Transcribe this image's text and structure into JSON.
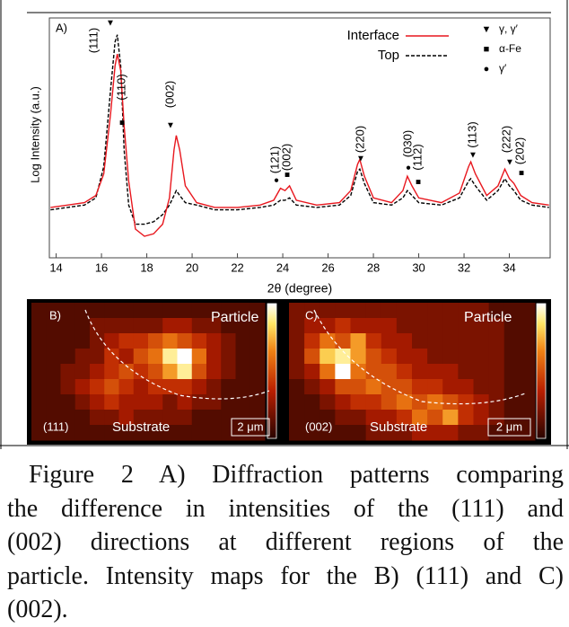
{
  "chart_data": [
    {
      "type": "line",
      "panel_label": "A)",
      "xlabel": "2θ (degree)",
      "ylabel": "Log Intensity (a.u.)",
      "x": [
        13.75,
        14.5,
        15.25,
        15.75,
        16.1,
        16.4,
        16.6,
        16.7,
        16.85,
        17.0,
        17.2,
        17.5,
        17.9,
        18.3,
        18.7,
        19.0,
        19.2,
        19.3,
        19.45,
        19.7,
        20.2,
        21.0,
        22.0,
        23.0,
        23.6,
        23.9,
        24.1,
        24.3,
        24.6,
        25.5,
        26.5,
        27.0,
        27.3,
        27.4,
        27.6,
        28.0,
        28.8,
        29.3,
        29.5,
        29.7,
        30.0,
        31.0,
        31.8,
        32.2,
        32.3,
        32.5,
        33.0,
        33.5,
        33.8,
        34.0,
        34.2,
        34.5,
        35.0,
        35.75
      ],
      "series": [
        {
          "name": "Interface",
          "color": "#e8171e",
          "dashed": false,
          "values": [
            21,
            22,
            23,
            26,
            35,
            60,
            80,
            85,
            78,
            55,
            32,
            12,
            9,
            10,
            14,
            25,
            45,
            51,
            45,
            30,
            23,
            21,
            21,
            22,
            24,
            29,
            28,
            30,
            24,
            22,
            23,
            28,
            39,
            41,
            34,
            25,
            23,
            28,
            34,
            30,
            25,
            23,
            27,
            38,
            40,
            35,
            26,
            30,
            37,
            33,
            31,
            26,
            23,
            22
          ]
        },
        {
          "name": "Top",
          "color": "#000000",
          "dashed": true,
          "values": [
            20,
            21,
            22,
            25,
            38,
            70,
            90,
            93,
            80,
            45,
            22,
            14,
            14,
            15,
            18,
            22,
            26,
            28,
            26,
            23,
            22,
            20,
            20,
            21,
            22,
            24,
            24,
            25,
            22,
            21,
            22,
            26,
            36,
            37,
            31,
            23,
            22,
            25,
            28,
            26,
            23,
            22,
            25,
            32,
            33,
            30,
            24,
            28,
            33,
            30,
            28,
            24,
            22,
            21
          ]
        }
      ],
      "xlim": [
        13.7,
        35.8
      ],
      "xticks": [
        14,
        16,
        18,
        20,
        22,
        24,
        26,
        28,
        30,
        32,
        34
      ],
      "ylim": [
        0,
        100
      ],
      "annotations": [
        {
          "text": "(111)",
          "marker": "▼"
        },
        {
          "text": "(110)",
          "marker": "■"
        },
        {
          "text": "(002)",
          "marker": "▼"
        },
        {
          "text": "(121)",
          "marker": "●"
        },
        {
          "text": "(002)",
          "marker": "■"
        },
        {
          "text": "(220)",
          "marker": "▼"
        },
        {
          "text": "(030)",
          "marker": "●"
        },
        {
          "text": "(112)",
          "marker": "■"
        },
        {
          "text": "(113)",
          "marker": "▼"
        },
        {
          "text": "(222)",
          "marker": "▼"
        },
        {
          "text": "(202)",
          "marker": "■"
        }
      ],
      "marker_legend": [
        {
          "marker": "▼",
          "name": "γ, γ′"
        },
        {
          "marker": "■",
          "name": "α-Fe"
        },
        {
          "marker": "●",
          "name": "γ′"
        }
      ]
    },
    {
      "type": "heatmap",
      "panel_label": "B)",
      "top_label": "Particle",
      "index_label": "(111)",
      "bottom_label": "Substrate",
      "scale_bar": "2 μm",
      "zlim": [
        0,
        10
      ],
      "values": [
        [
          1,
          1,
          1,
          1,
          1,
          1,
          1,
          1,
          1,
          1,
          1,
          1,
          1,
          1,
          1,
          1
        ],
        [
          1,
          1,
          1,
          1,
          2,
          2,
          2,
          2,
          2,
          3,
          3,
          2,
          2,
          1,
          1,
          1
        ],
        [
          1,
          1,
          1,
          1,
          2,
          3,
          4,
          4,
          5,
          6,
          5,
          4,
          3,
          2,
          1,
          1
        ],
        [
          1,
          1,
          1,
          2,
          2,
          4,
          3,
          5,
          6,
          9,
          10,
          6,
          3,
          2,
          1,
          1
        ],
        [
          1,
          1,
          2,
          2,
          3,
          4,
          5,
          4,
          5,
          7,
          9,
          5,
          3,
          2,
          1,
          1
        ],
        [
          1,
          1,
          2,
          3,
          4,
          5,
          4,
          3,
          4,
          4,
          4,
          3,
          2,
          1,
          1,
          1
        ],
        [
          1,
          1,
          1,
          2,
          3,
          4,
          3,
          3,
          3,
          2,
          3,
          2,
          2,
          1,
          1,
          1
        ],
        [
          1,
          1,
          1,
          1,
          2,
          2,
          3,
          2,
          2,
          2,
          2,
          1,
          1,
          1,
          1,
          1
        ],
        [
          1,
          1,
          1,
          1,
          1,
          1,
          1,
          1,
          1,
          1,
          1,
          1,
          1,
          1,
          1,
          1
        ]
      ]
    },
    {
      "type": "heatmap",
      "panel_label": "C)",
      "top_label": "Particle",
      "index_label": "(002)",
      "bottom_label": "Substrate",
      "scale_bar": "2 μm",
      "zlim": [
        0,
        10
      ],
      "values": [
        [
          2,
          2,
          2,
          2,
          2,
          2,
          2,
          2,
          2,
          2,
          2,
          2,
          2,
          1,
          1,
          1
        ],
        [
          2,
          3,
          3,
          4,
          3,
          3,
          3,
          2,
          2,
          2,
          2,
          2,
          2,
          2,
          1,
          1
        ],
        [
          2,
          4,
          6,
          5,
          7,
          4,
          3,
          3,
          2,
          2,
          2,
          2,
          2,
          2,
          1,
          1
        ],
        [
          2,
          5,
          8,
          9,
          7,
          5,
          4,
          3,
          3,
          2,
          2,
          2,
          2,
          2,
          1,
          1
        ],
        [
          2,
          3,
          6,
          10,
          6,
          5,
          5,
          4,
          3,
          3,
          3,
          2,
          2,
          2,
          1,
          1
        ],
        [
          1,
          2,
          3,
          5,
          5,
          6,
          5,
          5,
          4,
          4,
          3,
          3,
          2,
          2,
          1,
          1
        ],
        [
          1,
          1,
          2,
          3,
          4,
          4,
          5,
          6,
          5,
          6,
          5,
          4,
          3,
          2,
          1,
          1
        ],
        [
          1,
          1,
          1,
          2,
          2,
          3,
          3,
          4,
          6,
          5,
          7,
          4,
          3,
          2,
          1,
          1
        ],
        [
          1,
          1,
          1,
          1,
          1,
          2,
          2,
          2,
          3,
          3,
          3,
          2,
          2,
          1,
          1,
          1
        ]
      ]
    }
  ],
  "caption_lines": [
    "Figure 2 A) Diffraction patterns comparing",
    "the difference in intensities of the (111) and",
    "(002) directions at different regions of the",
    "particle. Intensity maps for the B) (111) and C)",
    "(002)."
  ]
}
